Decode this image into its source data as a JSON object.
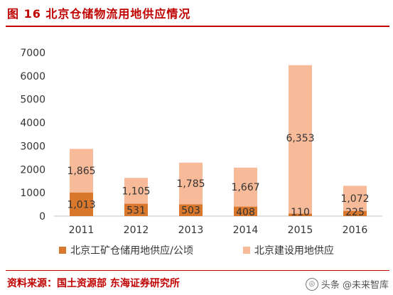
{
  "title": "图 16 北京仓储物流用地供应情况",
  "source": "资料来源：国土资源部  东海证券研究所",
  "watermark": "头条 @未来智库",
  "colors": {
    "accent": "#c00000",
    "series_industrial": "#d9782d",
    "series_construction": "#f8bb99"
  },
  "chart_data": {
    "type": "bar",
    "stacked": true,
    "categories": [
      "2011",
      "2012",
      "2013",
      "2014",
      "2015",
      "2016"
    ],
    "series": [
      {
        "name": "北京工矿仓储用地供应/公顷",
        "values": [
          1013,
          531,
          503,
          408,
          110,
          225
        ],
        "labels": [
          "1,013",
          "531",
          "503",
          "408",
          "110",
          "225"
        ]
      },
      {
        "name": "北京建设用地供应",
        "values": [
          1865,
          1105,
          1785,
          1667,
          6353,
          1072
        ],
        "labels": [
          "1,865",
          "1,105",
          "1,785",
          "1,667",
          "6,353",
          "1,072"
        ]
      }
    ],
    "yticks": [
      "0",
      "1000",
      "2000",
      "3000",
      "4000",
      "5000",
      "6000",
      "7000"
    ],
    "ylim": [
      0,
      7000
    ],
    "grid": false,
    "legend_position": "bottom"
  }
}
